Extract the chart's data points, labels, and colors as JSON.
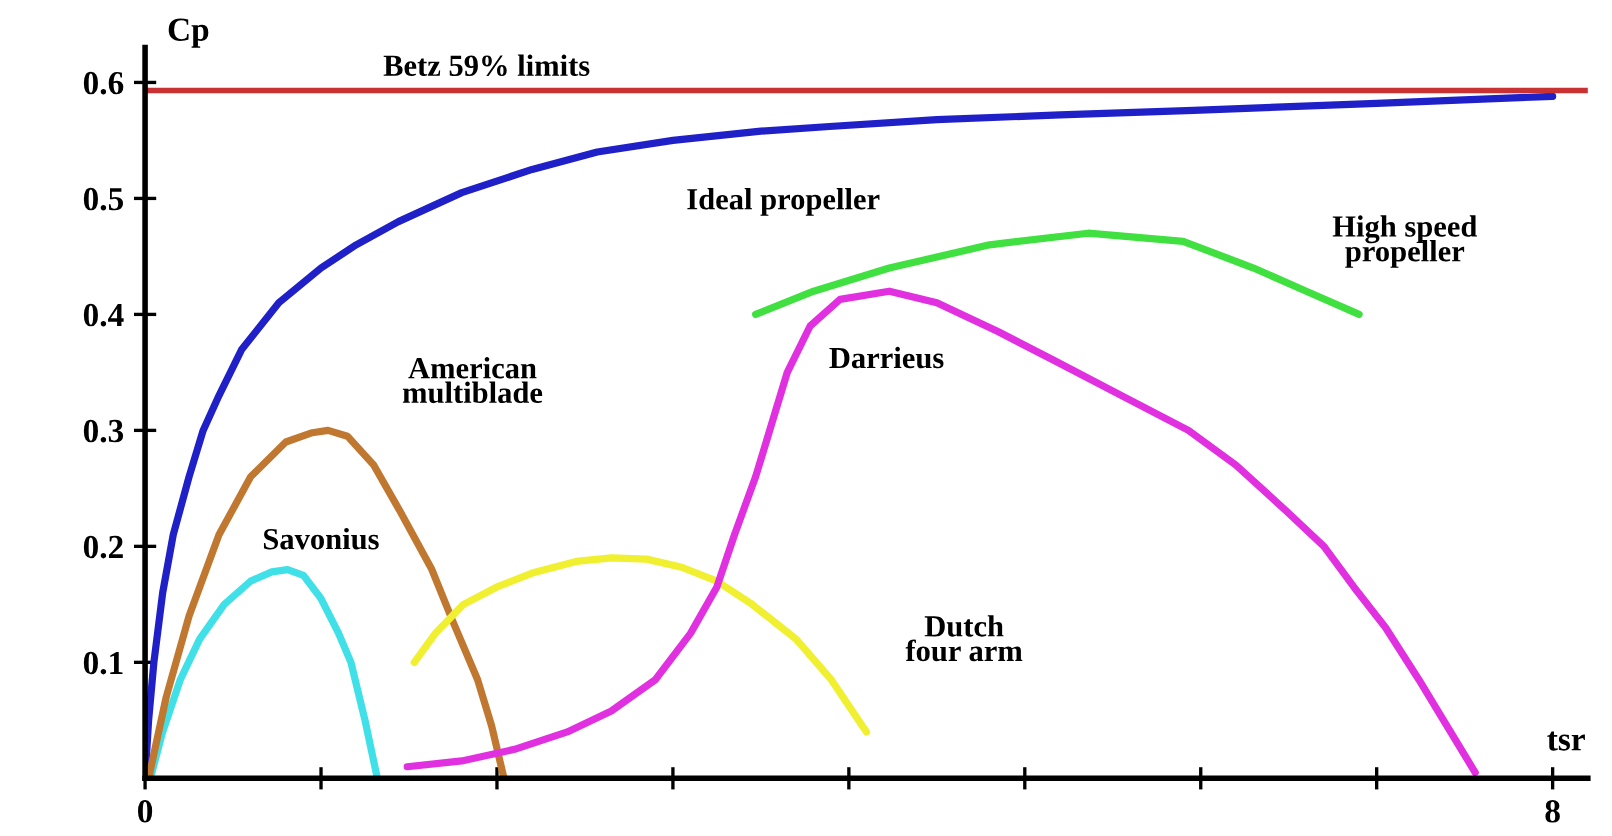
{
  "chart_data": {
    "type": "line",
    "xlabel": "tsr",
    "ylabel": "Cp",
    "xlim": [
      0,
      8.2
    ],
    "ylim": [
      0,
      0.63
    ],
    "xticks": [
      {
        "value": 0,
        "label": "0"
      },
      {
        "value": 1,
        "label": null
      },
      {
        "value": 2,
        "label": null
      },
      {
        "value": 3,
        "label": null
      },
      {
        "value": 4,
        "label": null
      },
      {
        "value": 5,
        "label": null
      },
      {
        "value": 6,
        "label": null
      },
      {
        "value": 7,
        "label": null
      },
      {
        "value": 8,
        "label": "8"
      }
    ],
    "yticks": [
      0.1,
      0.2,
      0.3,
      0.4,
      0.5,
      0.6
    ],
    "grid": false,
    "legend": false,
    "marker": "none",
    "line_style": "solid",
    "ref_lines": [
      {
        "axis": "y",
        "value": 0.593,
        "label": "Betz 59% limits",
        "color": "#c83232"
      }
    ],
    "series": [
      {
        "name": "Ideal propeller",
        "color": "#2020c8",
        "x": [
          0,
          0.02,
          0.05,
          0.1,
          0.16,
          0.25,
          0.33,
          0.42,
          0.55,
          0.76,
          1.0,
          1.2,
          1.44,
          1.8,
          2.2,
          2.57,
          3.0,
          3.5,
          3.89,
          4.5,
          5.2,
          5.96,
          7,
          8
        ],
        "values": [
          0,
          0.05,
          0.1,
          0.16,
          0.21,
          0.26,
          0.3,
          0.33,
          0.37,
          0.41,
          0.44,
          0.46,
          0.48,
          0.505,
          0.525,
          0.54,
          0.55,
          0.558,
          0.562,
          0.568,
          0.572,
          0.576,
          0.582,
          0.588
        ]
      },
      {
        "name": "Savonius",
        "color": "#40e0e8",
        "x": [
          0.03,
          0.1,
          0.2,
          0.31,
          0.45,
          0.6,
          0.72,
          0.81,
          0.9,
          1.0,
          1.1,
          1.17,
          1.25,
          1.32
        ],
        "values": [
          0,
          0.04,
          0.085,
          0.12,
          0.15,
          0.17,
          0.178,
          0.18,
          0.175,
          0.155,
          0.125,
          0.1,
          0.05,
          0
        ]
      },
      {
        "name": "American\nmultiblade",
        "color": "#c07830",
        "x": [
          0.02,
          0.12,
          0.25,
          0.42,
          0.6,
          0.8,
          0.95,
          1.04,
          1.15,
          1.3,
          1.45,
          1.63,
          1.75,
          1.89,
          1.97,
          2.04
        ],
        "values": [
          0,
          0.07,
          0.14,
          0.21,
          0.26,
          0.29,
          0.298,
          0.3,
          0.295,
          0.27,
          0.23,
          0.18,
          0.135,
          0.085,
          0.045,
          0
        ]
      },
      {
        "name": "Dutch\nfour arm",
        "color": "#f0f030",
        "x": [
          1.53,
          1.65,
          1.81,
          2.0,
          2.2,
          2.45,
          2.65,
          2.85,
          3.05,
          3.25,
          3.45,
          3.7,
          3.9,
          4.1
        ],
        "values": [
          0.1,
          0.125,
          0.15,
          0.165,
          0.177,
          0.187,
          0.19,
          0.189,
          0.182,
          0.17,
          0.15,
          0.12,
          0.085,
          0.04
        ]
      },
      {
        "name": "Darrieus",
        "color": "#e030e0",
        "x": [
          1.49,
          1.8,
          2.1,
          2.4,
          2.65,
          2.9,
          3.1,
          3.25,
          3.35,
          3.47,
          3.55,
          3.65,
          3.78,
          3.95,
          4.23,
          4.5,
          4.85,
          5.17,
          5.55,
          5.93,
          6.2,
          6.49,
          6.7,
          6.87,
          7.05,
          7.24,
          7.4,
          7.56
        ],
        "values": [
          0.01,
          0.015,
          0.025,
          0.04,
          0.058,
          0.085,
          0.125,
          0.165,
          0.21,
          0.26,
          0.3,
          0.35,
          0.39,
          0.413,
          0.42,
          0.41,
          0.385,
          0.36,
          0.33,
          0.3,
          0.27,
          0.23,
          0.2,
          0.165,
          0.13,
          0.085,
          0.045,
          0.005
        ]
      },
      {
        "name": "High speed\npropeller",
        "color": "#40e040",
        "x": [
          3.47,
          3.8,
          4.23,
          4.8,
          5.36,
          5.9,
          6.3,
          6.6,
          6.9
        ],
        "values": [
          0.4,
          0.42,
          0.44,
          0.46,
          0.47,
          0.463,
          0.44,
          0.42,
          0.4
        ]
      }
    ]
  }
}
